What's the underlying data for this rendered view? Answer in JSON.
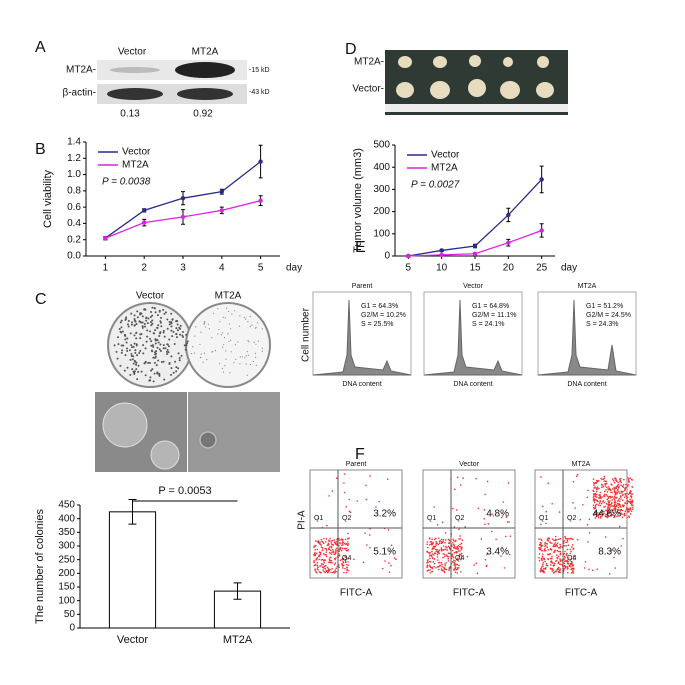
{
  "panels": {
    "A": {
      "label": "A",
      "columns": [
        "Vector",
        "MT2A"
      ],
      "rows": [
        "MT2A-",
        "β-actin-"
      ],
      "sizes": [
        "-15 kD",
        "-43 kD"
      ],
      "ratios": [
        0.13,
        0.92
      ]
    },
    "B": {
      "label": "B"
    },
    "C": {
      "label": "C",
      "columns": [
        "Vector",
        "MT2A"
      ]
    },
    "D": {
      "label": "D",
      "rows": [
        "MT2A-",
        "Vector-"
      ]
    },
    "E": {
      "label": "E",
      "y_label": "Cell  number",
      "plots": [
        {
          "title": "Parent",
          "stats": [
            "G1 = 64.3%",
            "G2/M = 10.2%",
            "S = 25.5%"
          ],
          "x_label": "DNA content"
        },
        {
          "title": "Vector",
          "stats": [
            "G1 = 64.8%",
            "G2/M = 11.1%",
            "S = 24.1%"
          ],
          "x_label": "DNA content"
        },
        {
          "title": "MT2A",
          "stats": [
            "G1 = 51.2%",
            "G2/M = 24.5%",
            "S = 24.3%"
          ],
          "x_label": "DNA content"
        }
      ]
    },
    "F": {
      "label": "F",
      "y_label": "PI-A",
      "plots": [
        {
          "title": "Parent",
          "quadrants": [
            "Q1",
            "Q2",
            "Q4"
          ],
          "upper_right": "3.2%",
          "lower_right": "5.1%",
          "x_label": "FITC-A"
        },
        {
          "title": "Vector",
          "quadrants": [
            "Q1",
            "Q2",
            "Q4"
          ],
          "upper_right": "4.8%",
          "lower_right": "3.4%",
          "x_label": "FITC-A"
        },
        {
          "title": "MT2A",
          "quadrants": [
            "Q1",
            "Q2",
            "Q4"
          ],
          "upper_right": "44.6%",
          "lower_right": "8.3%",
          "x_label": "FITC-A"
        }
      ]
    }
  },
  "chart_data": [
    {
      "type": "line",
      "ylabel": "Cell viability",
      "xlabel": "day",
      "annotation": "P = 0.0038",
      "x": [
        1,
        2,
        3,
        4,
        5
      ],
      "xlim": [
        0.5,
        5.5
      ],
      "xticks": [
        1,
        2,
        3,
        4,
        5
      ],
      "ylim": [
        0,
        1.4
      ],
      "yticks": [
        {
          "value": 0,
          "label": "0.0"
        },
        0.2,
        0.4,
        0.6,
        0.8,
        {
          "value": 1,
          "label": "1.0"
        },
        1.2,
        1.4
      ],
      "series": [
        {
          "name": "Vector",
          "color": "#2b2b8c",
          "values": [
            0.22,
            0.56,
            0.71,
            0.79,
            1.16
          ],
          "errors": [
            0.02,
            0.02,
            0.08,
            0.03,
            0.2
          ]
        },
        {
          "name": "MT2A",
          "color": "#e020e0",
          "values": [
            0.22,
            0.41,
            0.48,
            0.56,
            0.68
          ],
          "errors": [
            0.02,
            0.04,
            0.09,
            0.04,
            0.06
          ]
        }
      ]
    },
    {
      "type": "line",
      "ylabel": "Tumor volume (mm3)",
      "xlabel": "day",
      "annotation": "P = 0.0027",
      "x": [
        5,
        10,
        15,
        20,
        25
      ],
      "xlim": [
        3,
        27
      ],
      "xticks": [
        5,
        10,
        15,
        20,
        25
      ],
      "ylim": [
        0,
        500
      ],
      "yticks": [
        0,
        100,
        200,
        300,
        400,
        500
      ],
      "series": [
        {
          "name": "Vector",
          "color": "#2b2b8c",
          "values": [
            0,
            25,
            45,
            185,
            345
          ],
          "errors": [
            5,
            5,
            8,
            30,
            60
          ]
        },
        {
          "name": "MT2A",
          "color": "#e020e0",
          "values": [
            0,
            5,
            10,
            60,
            115
          ],
          "errors": [
            3,
            3,
            4,
            15,
            30
          ]
        }
      ]
    },
    {
      "type": "bar",
      "ylabel": "The number of colonies",
      "annotation": "P = 0.0053",
      "categories": [
        "Vector",
        "MT2A"
      ],
      "values": [
        425,
        135
      ],
      "errors": [
        45,
        30
      ],
      "color": "#ffffff",
      "ylim": [
        0,
        450
      ],
      "yticks": [
        0,
        50,
        100,
        150,
        200,
        250,
        300,
        350,
        400,
        450
      ]
    }
  ]
}
